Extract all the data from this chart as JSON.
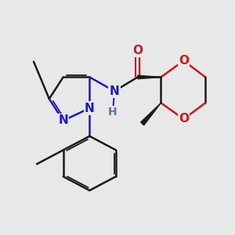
{
  "background_color": "#e8e8e8",
  "bond_color": "#1a1a1a",
  "N_color": "#1a1acc",
  "O_color": "#cc1a1a",
  "line_width": 1.8,
  "font_size_atom": 11,
  "fig_width": 3.0,
  "fig_height": 3.0,
  "dpi": 100,
  "xlim": [
    1.5,
    9.0
  ],
  "ylim": [
    2.0,
    8.5
  ]
}
